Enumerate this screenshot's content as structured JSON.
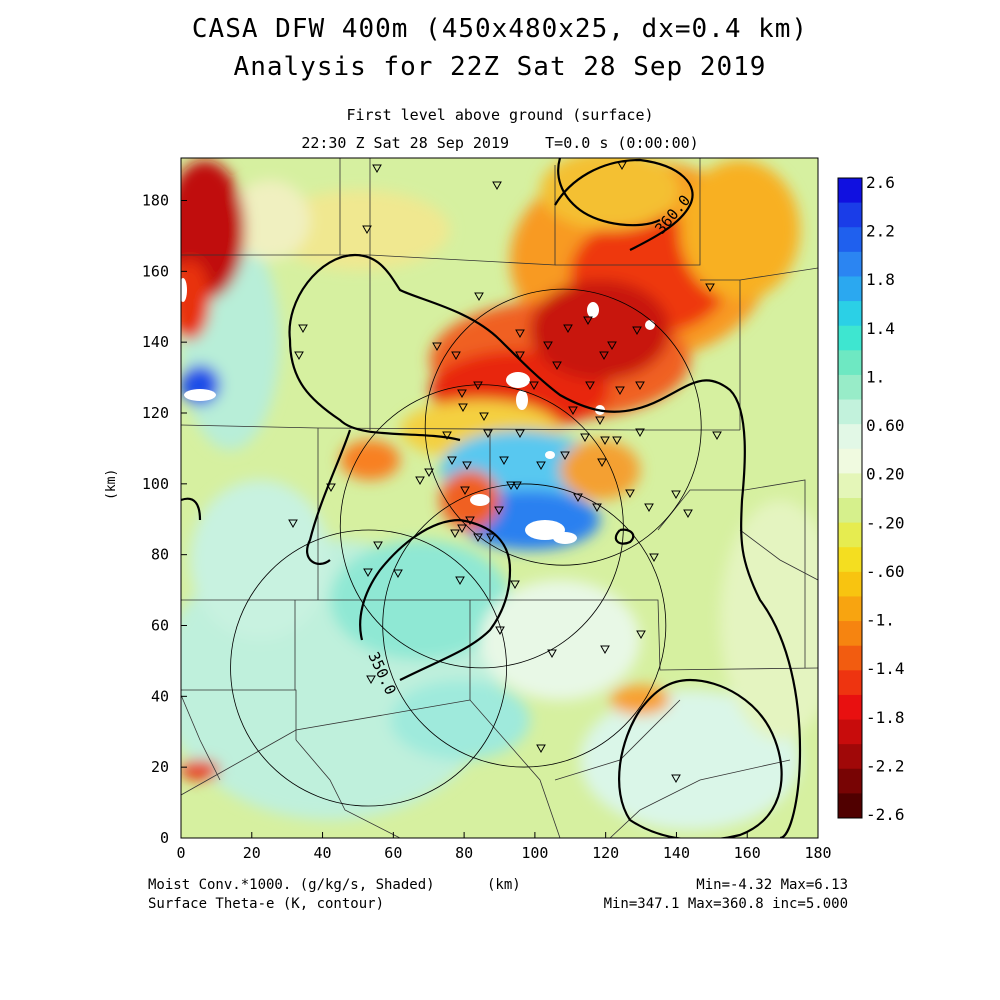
{
  "titles": {
    "line1": "CASA DFW 400m (450x480x25, dx=0.4 km)",
    "line2": "Analysis for 22Z Sat 28 Sep 2019",
    "line3": "First level above ground (surface)",
    "line4": "22:30 Z Sat 28 Sep 2019    T=0.0 s (0:00:00)"
  },
  "footer": {
    "shaded_desc": "Moist Conv.*1000. (g/kg/s, Shaded)",
    "contour_desc": "Surface Theta-e (K, contour)",
    "x_unit": "(km)",
    "shaded_minmax": "Min=-4.32 Max=6.13",
    "contour_minmax": "Min=347.1 Max=360.8 inc=5.000"
  },
  "axes": {
    "y_label": "(km)",
    "x_ticks": [
      "0",
      "20",
      "40",
      "60",
      "80",
      "100",
      "120",
      "140",
      "160",
      "180"
    ],
    "y_ticks": [
      "0",
      "20",
      "40",
      "60",
      "80",
      "100",
      "120",
      "140",
      "160",
      "180"
    ],
    "x_range": [
      0,
      180
    ],
    "y_range": [
      0,
      192
    ]
  },
  "contour_labels": [
    "360.0",
    "350.0"
  ],
  "colorbar": {
    "labels": [
      "2.6",
      "2.2",
      "1.8",
      "1.4",
      "1.",
      "0.60",
      "0.20",
      "-.20",
      "-.60",
      "-1.",
      "-1.4",
      "-1.8",
      "-2.2",
      "-2.6"
    ],
    "colors": [
      "#1010e0",
      "#1a3de8",
      "#1f60ee",
      "#2b85f2",
      "#2ba8f0",
      "#2bd0e6",
      "#3ee6d0",
      "#6ee8c2",
      "#98ecc8",
      "#c2f2dc",
      "#e2f8e6",
      "#f0fae0",
      "#e4f6b8",
      "#d6f08c",
      "#e6ec50",
      "#f4de20",
      "#f8c410",
      "#f8a410",
      "#f68410",
      "#f25c10",
      "#ee3410",
      "#e81010",
      "#c80c0c",
      "#a00808",
      "#780404",
      "#500000"
    ]
  },
  "radars": [
    {
      "cx": 108,
      "cy": 116,
      "r": 39
    },
    {
      "cx": 85,
      "cy": 88,
      "r": 40
    },
    {
      "cx": 97,
      "cy": 60,
      "r": 40
    },
    {
      "cx": 53,
      "cy": 48,
      "r": 39
    }
  ]
}
